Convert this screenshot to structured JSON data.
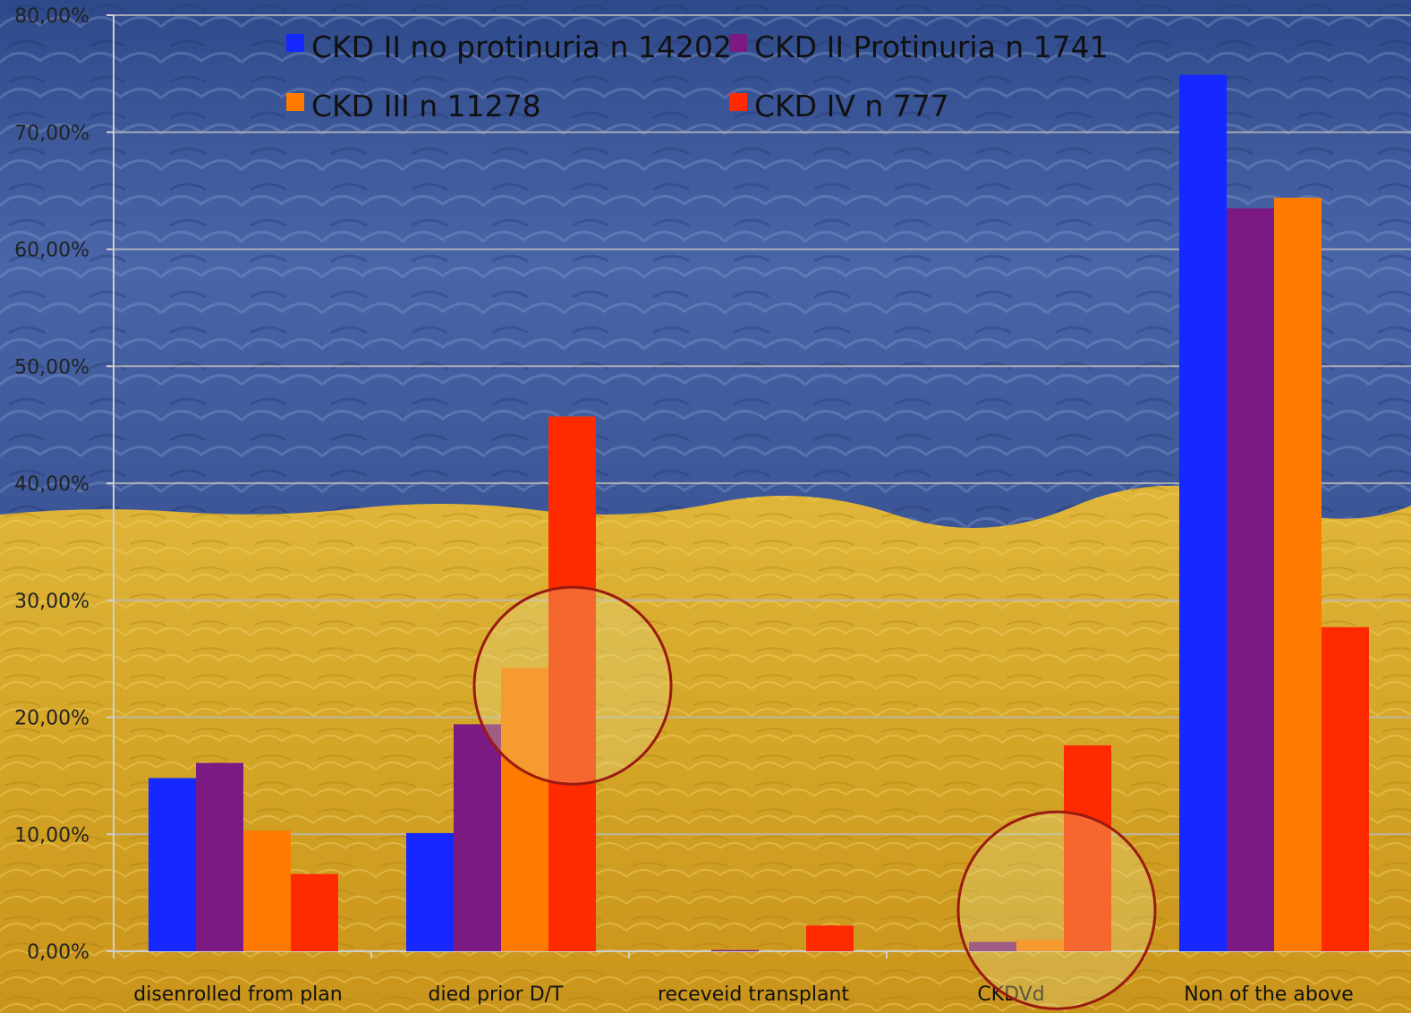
{
  "chart_data": {
    "type": "bar",
    "categories": [
      "disenrolled from plan",
      "died prior D/T",
      "receveid transplant",
      "CKDVd",
      "Non of the above"
    ],
    "series": [
      {
        "name": "CKD II no protinuria n 14202",
        "color": "#1428ff",
        "values": [
          14.8,
          10.1,
          0.0,
          0.0,
          74.9
        ]
      },
      {
        "name": "CKD II Protinuria n 1741",
        "color": "#7a1a82",
        "values": [
          16.1,
          19.4,
          0.1,
          0.8,
          63.5
        ]
      },
      {
        "name": "CKD III n 11278",
        "color": "#ff7a00",
        "values": [
          10.3,
          24.2,
          0.0,
          1.0,
          64.4
        ]
      },
      {
        "name": "CKD IV n 777",
        "color": "#ff2a00",
        "values": [
          6.6,
          45.7,
          2.2,
          17.6,
          27.7
        ]
      }
    ],
    "yticks": [
      "0,00%",
      "10,00%",
      "20,00%",
      "30,00%",
      "40,00%",
      "50,00%",
      "60,00%",
      "70,00%",
      "80,00%"
    ],
    "ylim": [
      0,
      80
    ],
    "grid": true,
    "legend_position": "top",
    "highlight_circles": [
      "died prior D/T",
      "CKDVd"
    ],
    "background": {
      "top_color": "#3d5a99",
      "bottom_color": "#d9a92a"
    }
  }
}
